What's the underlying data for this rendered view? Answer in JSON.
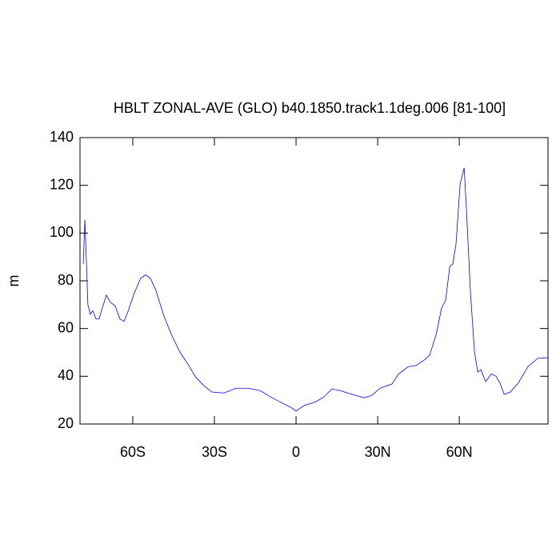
{
  "chart_data": {
    "type": "line",
    "title": "HBLT ZONAL-AVE (GLO) b40.1850.track1.1deg.006 [81-100]",
    "y_label": "m",
    "x": [
      -78.2,
      -77.6,
      -77,
      -76.5,
      -75.6,
      -74.7,
      -73.5,
      -72.4,
      -71.2,
      -69.7,
      -68.2,
      -66.5,
      -64.7,
      -63.2,
      -61.8,
      -59.4,
      -57.1,
      -55.3,
      -53.5,
      -51.5,
      -48.5,
      -45.6,
      -42.6,
      -39.7,
      -36.8,
      -33.8,
      -30.9,
      -26.5,
      -22,
      -17.6,
      -13.2,
      -8.8,
      -4.4,
      -1.5,
      0,
      2.9,
      7.4,
      10.3,
      13.2,
      16.2,
      20.6,
      25,
      27.9,
      30.9,
      35.3,
      37.6,
      41.2,
      44.1,
      47.1,
      49.1,
      51.5,
      53.5,
      55,
      56.5,
      57.6,
      58.8,
      60.3,
      61.8,
      62.6,
      64.1,
      65.6,
      66.8,
      67.9,
      69.7,
      71.8,
      73.5,
      75,
      76.5,
      78.8,
      81.8,
      85.3,
      88.8,
      92.4
    ],
    "series": [
      {
        "color": "#0000ff",
        "values": [
          87,
          105.5,
          87,
          70,
          66,
          67.5,
          64,
          64,
          68.6,
          74,
          71,
          69.5,
          64,
          63,
          67,
          75,
          81,
          82.5,
          81,
          76,
          65,
          57,
          50,
          45,
          39.5,
          36,
          33.4,
          33,
          35,
          35,
          34,
          31,
          28.4,
          26.7,
          25.4,
          27.7,
          29.4,
          31.4,
          34.7,
          34,
          32.4,
          31,
          32,
          35,
          36.8,
          40.8,
          44,
          44.5,
          46.8,
          48.8,
          57.5,
          68.6,
          72,
          86,
          87,
          95.4,
          120.6,
          127.3,
          110.5,
          75.3,
          50,
          41.8,
          42.8,
          37.8,
          41,
          40,
          37,
          32.4,
          33.4,
          37.4,
          44.1,
          47.5,
          47.8
        ]
      }
    ],
    "xlim": [
      -79.4,
      92.6
    ],
    "ylim": [
      20,
      140
    ],
    "xticks": [
      {
        "value": -60,
        "label": "60S"
      },
      {
        "value": -30,
        "label": "30S"
      },
      0,
      {
        "value": 30,
        "label": "30N"
      },
      {
        "value": 60,
        "label": "60N"
      }
    ],
    "yticks": [
      20,
      40,
      60,
      80,
      100,
      120,
      140
    ]
  }
}
